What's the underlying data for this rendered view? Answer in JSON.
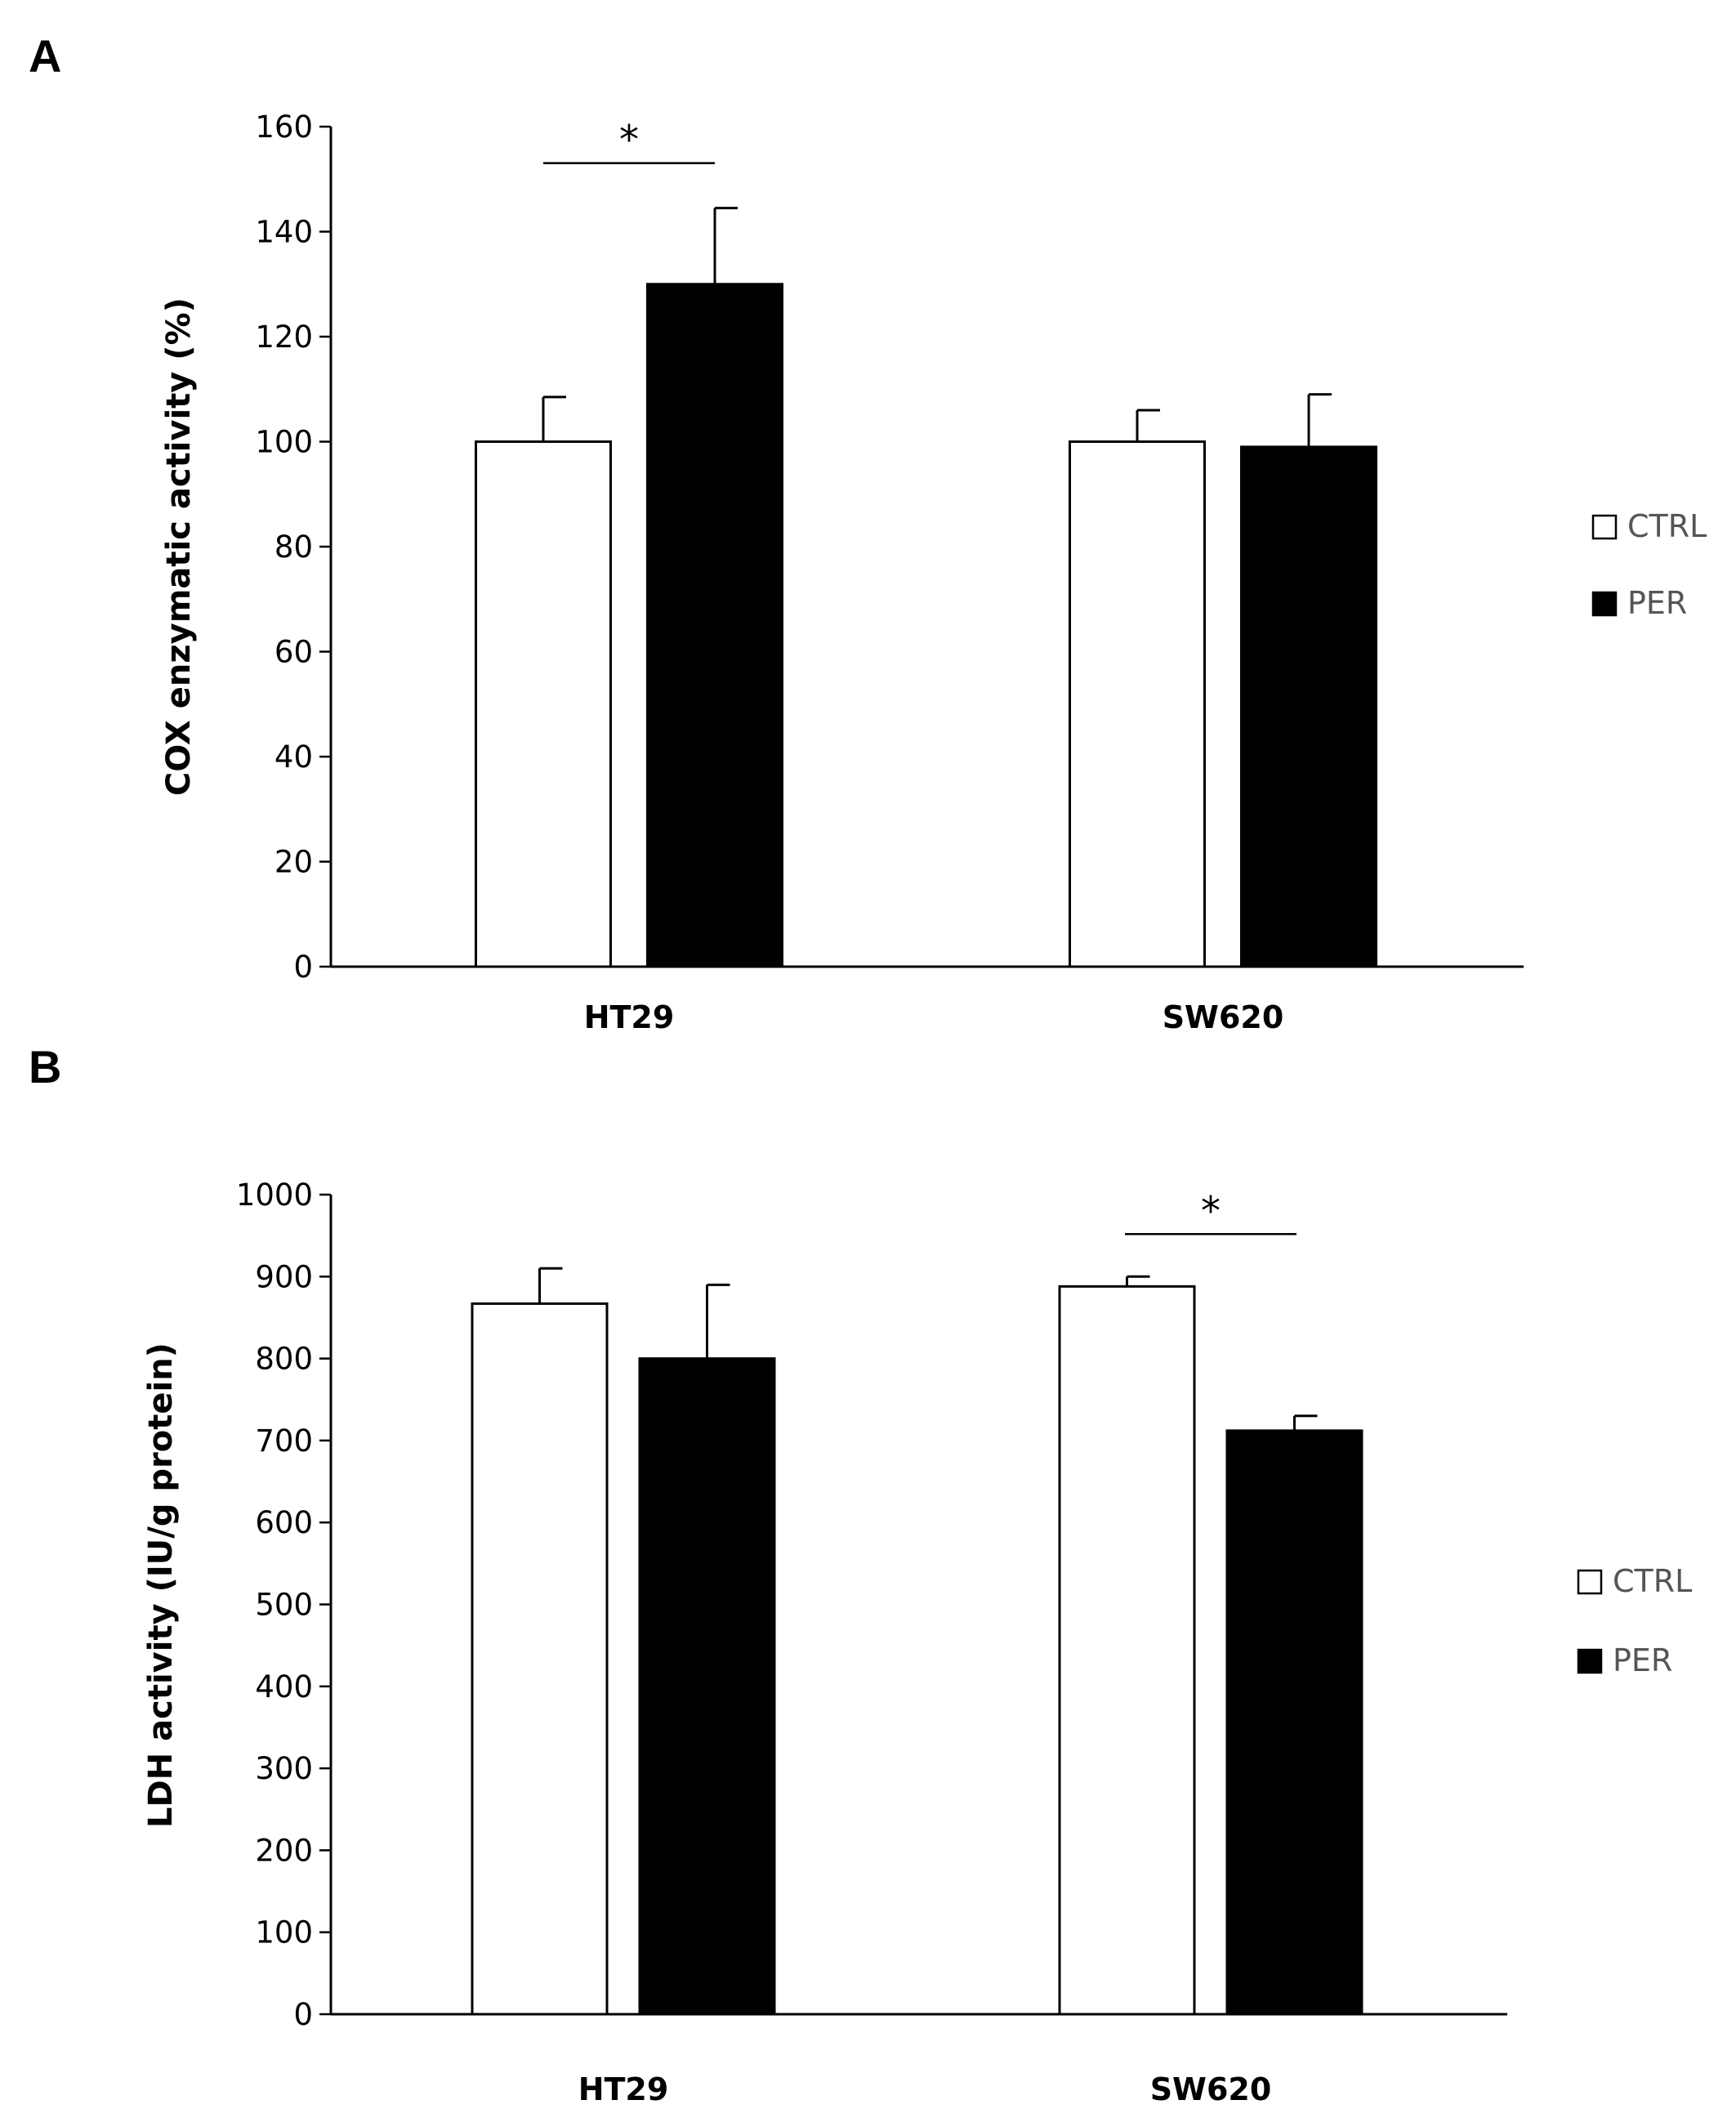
{
  "chart_data": [
    {
      "panel": "A",
      "type": "bar",
      "categories": [
        "HT29",
        "SW620"
      ],
      "series": [
        {
          "name": "CTRL",
          "color": "#ffffff",
          "values": [
            100,
            100
          ],
          "errors": [
            8.5,
            6
          ]
        },
        {
          "name": "PER",
          "color": "#000000",
          "values": [
            130,
            99
          ],
          "errors": [
            14.5,
            10
          ]
        }
      ],
      "ylabel": "COX enzymatic activity (%)",
      "xlabel": "",
      "ylim": [
        0,
        160
      ],
      "yticks": [
        0,
        20,
        40,
        60,
        80,
        100,
        120,
        140,
        160
      ],
      "grid": false,
      "legend": "right",
      "significance": [
        {
          "category": "HT29",
          "label": "*"
        }
      ]
    },
    {
      "panel": "B",
      "type": "bar",
      "categories": [
        "HT29",
        "SW620"
      ],
      "series": [
        {
          "name": "CTRL",
          "color": "#ffffff",
          "values": [
            867,
            888
          ],
          "errors": [
            43,
            12
          ]
        },
        {
          "name": "PER",
          "color": "#000000",
          "values": [
            800,
            712
          ],
          "errors": [
            90,
            18
          ]
        }
      ],
      "ylabel": "LDH activity (IU/g protein)",
      "xlabel": "",
      "ylim": [
        0,
        1000
      ],
      "yticks": [
        0,
        100,
        200,
        300,
        400,
        500,
        600,
        700,
        800,
        900,
        1000
      ],
      "grid": false,
      "legend": "right",
      "significance": [
        {
          "category": "SW620",
          "label": "*"
        }
      ]
    }
  ]
}
